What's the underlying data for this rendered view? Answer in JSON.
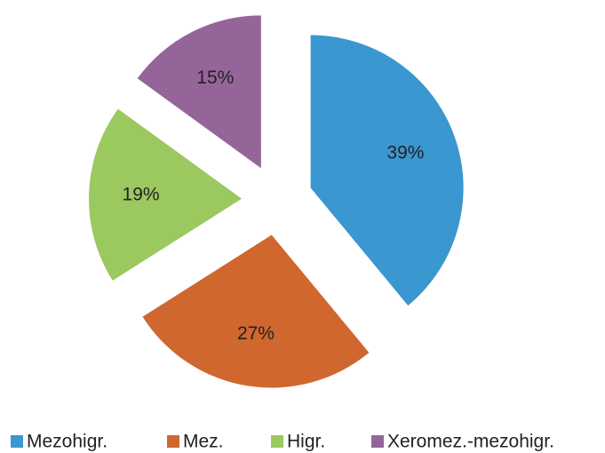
{
  "chart_data": {
    "type": "pie",
    "categories": [
      "Mezohigr.",
      "Mez.",
      "Higr.",
      "Xeromez.-mezohigr."
    ],
    "values": [
      39,
      27,
      19,
      15
    ],
    "value_labels": [
      "39%",
      "27%",
      "19%",
      "15%"
    ],
    "colors": [
      "#3a97cf",
      "#d0672f",
      "#9bc85f",
      "#95659a"
    ],
    "legend": "bottom"
  }
}
